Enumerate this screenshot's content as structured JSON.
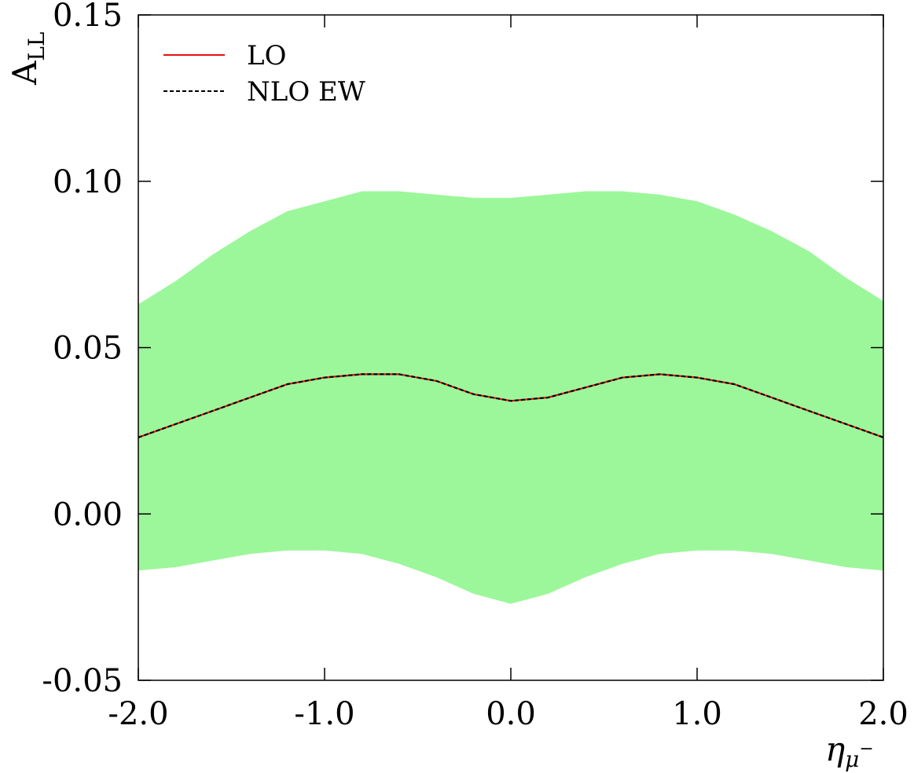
{
  "chart_data": {
    "type": "line",
    "title": "",
    "xlabel": {
      "main": "η",
      "sub": "μ",
      "sup": "−"
    },
    "ylabel": {
      "main": "A",
      "sub": "LL"
    },
    "xlim": [
      -2.0,
      2.0
    ],
    "ylim": [
      -0.05,
      0.15
    ],
    "x_ticks": [
      -2.0,
      -1.0,
      0.0,
      1.0,
      2.0
    ],
    "x_tick_labels": [
      "-2.0",
      "-1.0",
      "0.0",
      "1.0",
      "2.0"
    ],
    "y_ticks": [
      -0.05,
      0.0,
      0.05,
      0.1,
      0.15
    ],
    "y_tick_labels": [
      "-0.05",
      "0.00",
      "0.05",
      "0.10",
      "0.15"
    ],
    "grid": false,
    "legend_position": "top-left",
    "band": {
      "color": "#9cf79a",
      "x": [
        -2.0,
        -1.8,
        -1.6,
        -1.4,
        -1.2,
        -1.0,
        -0.8,
        -0.6,
        -0.4,
        -0.2,
        0.0,
        0.2,
        0.4,
        0.6,
        0.8,
        1.0,
        1.2,
        1.4,
        1.6,
        1.8,
        2.0
      ],
      "upper": [
        0.063,
        0.07,
        0.078,
        0.085,
        0.091,
        0.094,
        0.097,
        0.097,
        0.096,
        0.095,
        0.095,
        0.096,
        0.097,
        0.097,
        0.096,
        0.094,
        0.09,
        0.085,
        0.079,
        0.071,
        0.064
      ],
      "lower": [
        -0.017,
        -0.016,
        -0.014,
        -0.012,
        -0.011,
        -0.011,
        -0.012,
        -0.015,
        -0.019,
        -0.024,
        -0.027,
        -0.024,
        -0.019,
        -0.015,
        -0.012,
        -0.011,
        -0.011,
        -0.012,
        -0.014,
        -0.016,
        -0.017
      ]
    },
    "x": [
      -2.0,
      -1.8,
      -1.6,
      -1.4,
      -1.2,
      -1.0,
      -0.8,
      -0.6,
      -0.4,
      -0.2,
      0.0,
      0.2,
      0.4,
      0.6,
      0.8,
      1.0,
      1.2,
      1.4,
      1.6,
      1.8,
      2.0
    ],
    "series": [
      {
        "name": "LO",
        "color": "#e8100a",
        "dash": "solid",
        "values": [
          0.023,
          0.027,
          0.031,
          0.035,
          0.039,
          0.041,
          0.042,
          0.042,
          0.04,
          0.036,
          0.034,
          0.035,
          0.038,
          0.041,
          0.042,
          0.041,
          0.039,
          0.035,
          0.031,
          0.027,
          0.023
        ]
      },
      {
        "name": "NLO EW",
        "color": "#000000",
        "dash": "dashed",
        "values": [
          0.023,
          0.027,
          0.031,
          0.035,
          0.039,
          0.041,
          0.042,
          0.042,
          0.04,
          0.036,
          0.034,
          0.035,
          0.038,
          0.041,
          0.042,
          0.041,
          0.039,
          0.035,
          0.031,
          0.027,
          0.023
        ]
      }
    ]
  }
}
